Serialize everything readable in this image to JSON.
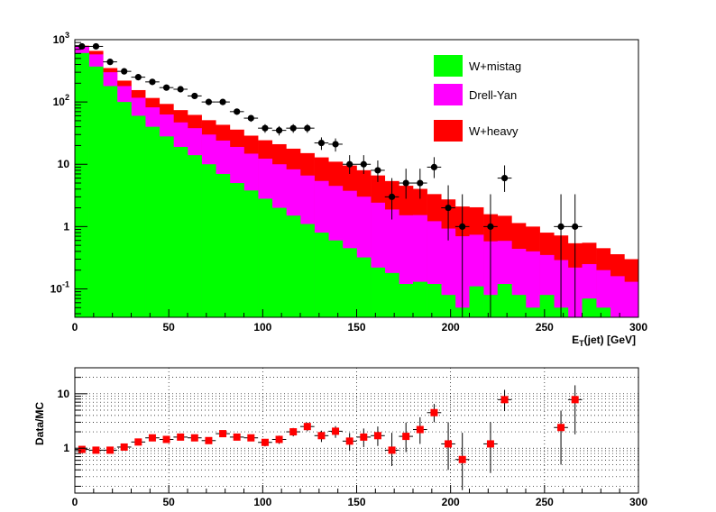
{
  "chart_data": [
    {
      "type": "stacked-step-histogram",
      "xlabel_main": "E",
      "xlabel_sub": "T",
      "xlabel_rest": "(jet) [GeV]",
      "ylabel": "",
      "xlim": [
        0,
        300
      ],
      "ylim": [
        0.035,
        1000
      ],
      "log_y": true,
      "bin_width": 7.5,
      "x_ticks": [
        "0",
        "50",
        "100",
        "150",
        "200",
        "250",
        "300"
      ],
      "y_ticks": [
        {
          "value": 1000,
          "base": "10",
          "exp": "3"
        },
        {
          "value": 100,
          "base": "10",
          "exp": "2"
        },
        {
          "value": 10,
          "base": "10",
          "exp": ""
        },
        {
          "value": 1,
          "base": "1",
          "exp": ""
        },
        {
          "value": 0.1,
          "base": "10",
          "exp": "-1"
        }
      ],
      "legend_position": "top-right",
      "series": [
        {
          "name": "W+mistag",
          "color": "#00ff00",
          "values": [
            610,
            370,
            180,
            100,
            60,
            40,
            28,
            19,
            14,
            10,
            7,
            5,
            3.8,
            2.8,
            2.0,
            1.5,
            1.1,
            0.8,
            0.6,
            0.45,
            0.32,
            0.22,
            0.18,
            0.12,
            0.13,
            0.12,
            0.08,
            0.05,
            0.11,
            0.08,
            0.12,
            0.08,
            0.05,
            0.08,
            0.05,
            0.03,
            0.07,
            0.05,
            0.03,
            0.02
          ]
        },
        {
          "name": "Drell-Yan",
          "color": "#ff00ff",
          "values": [
            160,
            210,
            120,
            80,
            57,
            42,
            35,
            28,
            24,
            20,
            17,
            14,
            11,
            9.5,
            8.0,
            6.8,
            5.5,
            4.6,
            3.9,
            3.3,
            2.7,
            2.2,
            1.7,
            1.4,
            1.4,
            1.1,
            0.85,
            0.65,
            0.63,
            0.5,
            0.47,
            0.36,
            0.35,
            0.27,
            0.24,
            0.19,
            0.18,
            0.15,
            0.13,
            0.11
          ]
        },
        {
          "name": "W+heavy",
          "color": "#ff0000",
          "values": [
            30,
            80,
            50,
            40,
            38,
            34,
            30,
            27,
            24,
            21,
            19,
            17,
            14,
            12,
            11,
            9.5,
            8.5,
            7.5,
            6.5,
            5.8,
            5.0,
            4.2,
            3.5,
            3.0,
            2.5,
            2.1,
            1.8,
            1.4,
            1.3,
            1.0,
            0.9,
            0.7,
            0.6,
            0.45,
            0.43,
            0.32,
            0.3,
            0.25,
            0.2,
            0.17
          ]
        }
      ],
      "data_points": {
        "name": "",
        "x": [
          3.75,
          11.25,
          18.75,
          26.25,
          33.75,
          41.25,
          48.75,
          56.25,
          63.75,
          71.25,
          78.75,
          86.25,
          93.75,
          101.25,
          108.75,
          116.25,
          123.75,
          131.25,
          138.75,
          146.25,
          153.75,
          161.25,
          168.75,
          176.25,
          183.75,
          191.25,
          198.75,
          206.25,
          221.25,
          228.75,
          258.75,
          266.25
        ],
        "y": [
          780,
          780,
          440,
          310,
          250,
          210,
          170,
          160,
          125,
          100,
          100,
          70,
          55,
          38,
          35,
          38,
          38,
          22,
          21,
          10,
          10,
          8,
          3,
          5,
          5,
          9,
          2,
          1,
          1,
          6,
          1,
          1
        ],
        "y_err_low": [
          30,
          30,
          25,
          20,
          18,
          16,
          14,
          13,
          12,
          10,
          10,
          8,
          7,
          6,
          6,
          6,
          6,
          5,
          5,
          3,
          3,
          2.8,
          1.7,
          2.2,
          2.2,
          3,
          1.4,
          0.97,
          0.97,
          2.4,
          0.97,
          0.97
        ],
        "y_err_high": [
          30,
          30,
          25,
          20,
          18,
          16,
          14,
          13,
          12,
          10,
          10,
          8,
          7,
          6,
          6,
          6,
          6,
          5,
          5,
          4,
          4,
          3.5,
          3,
          3.5,
          3.5,
          4,
          2.6,
          2.3,
          2.3,
          3.6,
          2.3,
          2.3
        ],
        "color": "#000000"
      }
    },
    {
      "type": "scatter",
      "xlabel": "",
      "ylabel": "Data/MC",
      "xlim": [
        0,
        300
      ],
      "ylim": [
        0.15,
        30
      ],
      "log_y": true,
      "grid": true,
      "x_ticks": [
        "0",
        "50",
        "100",
        "150",
        "200",
        "250",
        "300"
      ],
      "y_ticks": [
        {
          "value": 10,
          "label": "10"
        },
        {
          "value": 1,
          "label": "1"
        }
      ],
      "series": [
        {
          "name": "",
          "color": "#ff0000",
          "x": [
            3.75,
            11.25,
            18.75,
            26.25,
            33.75,
            41.25,
            48.75,
            56.25,
            63.75,
            71.25,
            78.75,
            86.25,
            93.75,
            101.25,
            108.75,
            116.25,
            123.75,
            131.25,
            138.75,
            146.25,
            153.75,
            161.25,
            168.75,
            176.25,
            183.75,
            191.25,
            198.75,
            206.25,
            221.25,
            228.75,
            258.75,
            266.25
          ],
          "y": [
            0.95,
            0.92,
            0.92,
            1.05,
            1.3,
            1.55,
            1.45,
            1.6,
            1.55,
            1.38,
            1.85,
            1.6,
            1.55,
            1.28,
            1.45,
            2.0,
            2.5,
            1.7,
            2.05,
            1.35,
            1.6,
            1.7,
            0.92,
            1.65,
            2.2,
            4.5,
            1.2,
            0.62,
            1.2,
            7.8,
            2.4,
            7.8
          ],
          "y_err_low": [
            0.05,
            0.05,
            0.05,
            0.07,
            0.1,
            0.12,
            0.12,
            0.14,
            0.15,
            0.14,
            0.2,
            0.18,
            0.2,
            0.2,
            0.25,
            0.35,
            0.45,
            0.4,
            0.5,
            0.45,
            0.55,
            0.6,
            0.45,
            0.8,
            1.0,
            1.5,
            0.8,
            0.45,
            0.85,
            3.0,
            1.9,
            6.0
          ],
          "y_err_high": [
            0.05,
            0.05,
            0.05,
            0.07,
            0.1,
            0.12,
            0.12,
            0.14,
            0.15,
            0.14,
            0.2,
            0.18,
            0.2,
            0.2,
            0.25,
            0.35,
            0.45,
            0.4,
            0.5,
            0.55,
            0.7,
            0.8,
            1.0,
            1.3,
            1.5,
            2.0,
            1.8,
            1.3,
            1.8,
            4.0,
            2.5,
            6.5
          ]
        }
      ]
    }
  ]
}
